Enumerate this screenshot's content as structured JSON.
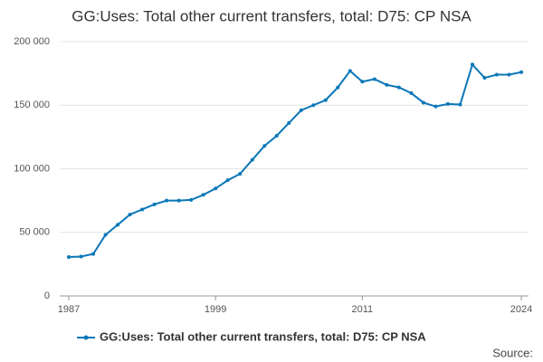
{
  "chart_data": {
    "type": "line",
    "title": "GG:Uses: Total other current transfers, total: D75: CP NSA",
    "source": "Source:",
    "x": [
      1987,
      1988,
      1989,
      1990,
      1991,
      1992,
      1993,
      1994,
      1995,
      1996,
      1997,
      1998,
      1999,
      2000,
      2001,
      2002,
      2003,
      2004,
      2005,
      2006,
      2007,
      2008,
      2009,
      2010,
      2011,
      2012,
      2013,
      2014,
      2015,
      2016,
      2017,
      2018,
      2019,
      2020,
      2021,
      2022,
      2023,
      2024
    ],
    "series": [
      {
        "name": "GG:Uses: Total other current transfers, total: D75: CP NSA",
        "color": "#0a77b8",
        "values": [
          30600,
          31000,
          33000,
          48000,
          56000,
          64000,
          68000,
          72000,
          75000,
          75000,
          75500,
          79500,
          84500,
          91000,
          96000,
          107000,
          118000,
          126000,
          136000,
          146000,
          150000,
          154000,
          164000,
          177000,
          168500,
          170500,
          166000,
          164000,
          159500,
          152000,
          149000,
          151000,
          150500,
          182000,
          171500,
          174000,
          174000,
          176000
        ]
      }
    ],
    "xlim": [
      1986.26,
      2024.59
    ],
    "xticks": [
      1987,
      1999,
      2011,
      2024
    ],
    "ylim": [
      0,
      200000
    ],
    "yticks": [
      0,
      {
        "value": 50000,
        "label": "50 000"
      },
      {
        "value": 100000,
        "label": "100 000"
      },
      {
        "value": 150000,
        "label": "150 000"
      },
      {
        "value": 200000,
        "label": "200 000"
      }
    ],
    "grid": true
  }
}
